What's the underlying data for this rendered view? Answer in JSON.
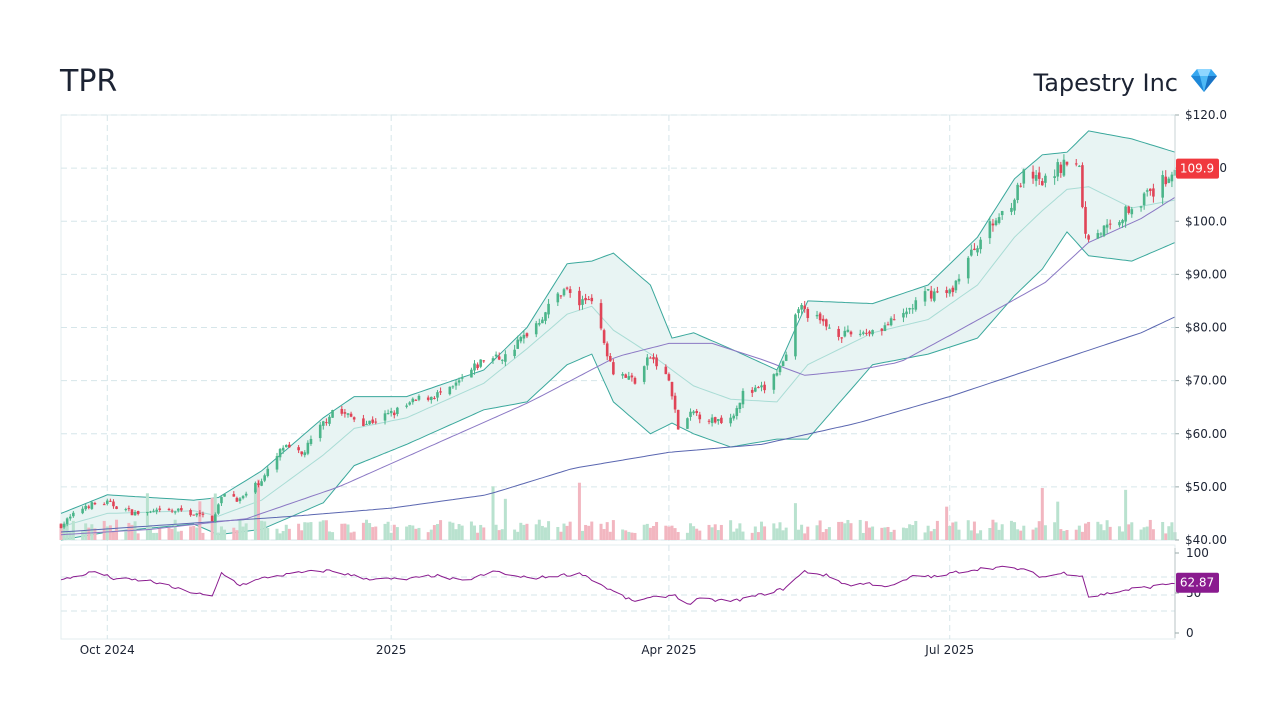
{
  "header": {
    "ticker": "TPR",
    "company": "Tapestry Inc",
    "icon": "diamond-icon"
  },
  "colors": {
    "up": "#4bb58a",
    "down": "#e04457",
    "band_fill": "#e8f4f3",
    "band_line": "#3aa89c",
    "ma_fast": "#8b78c4",
    "ma_slow": "#5a66b0",
    "rsi": "#8a1b8f",
    "price_badge": "#f0383e",
    "rsi_badge": "#8a1b8f",
    "grid": "#d6e6ea"
  },
  "chart_data": [
    {
      "type": "candlestick",
      "title": "",
      "ylim": [
        40,
        120
      ],
      "y_ticks": [
        "$120.0",
        "$110.0",
        "$100.0",
        "$90.00",
        "$80.00",
        "$70.00",
        "$60.00",
        "$50.00",
        "$40.00"
      ],
      "y_tick_values": [
        120,
        110,
        100,
        90,
        80,
        70,
        60,
        50,
        40
      ],
      "x_ticks": [
        "Oct 2024",
        "2025",
        "Apr 2025",
        "Jul 2025"
      ],
      "x_tick_dates": [
        "2024-10-01",
        "2025-01-01",
        "2025-04-01",
        "2025-07-01"
      ],
      "x_range": [
        "2024-09-16",
        "2025-09-12"
      ],
      "last_price": "109.9",
      "grid": true,
      "close_keypoints": [
        [
          "2024-09-16",
          42.8
        ],
        [
          "2024-09-24",
          46.5
        ],
        [
          "2024-10-01",
          47.0
        ],
        [
          "2024-10-10",
          45.0
        ],
        [
          "2024-10-25",
          45.5
        ],
        [
          "2024-11-04",
          44.0
        ],
        [
          "2024-11-08",
          49.0
        ],
        [
          "2024-11-13",
          47.5
        ],
        [
          "2024-11-21",
          52.0
        ],
        [
          "2024-11-27",
          57.5
        ],
        [
          "2024-12-03",
          56.0
        ],
        [
          "2024-12-10",
          62.0
        ],
        [
          "2024-12-13",
          64.5
        ],
        [
          "2024-12-24",
          62.0
        ],
        [
          "2025-01-02",
          64.0
        ],
        [
          "2025-01-10",
          66.5
        ],
        [
          "2025-01-20",
          68.0
        ],
        [
          "2025-01-31",
          74.0
        ],
        [
          "2025-02-07",
          74.5
        ],
        [
          "2025-02-14",
          79.0
        ],
        [
          "2025-02-18",
          81.5
        ],
        [
          "2025-02-26",
          87.5
        ],
        [
          "2025-03-03",
          84.5
        ],
        [
          "2025-03-07",
          86.0
        ],
        [
          "2025-03-10",
          79.0
        ],
        [
          "2025-03-14",
          72.0
        ],
        [
          "2025-03-21",
          70.0
        ],
        [
          "2025-03-26",
          74.5
        ],
        [
          "2025-04-01",
          70.0
        ],
        [
          "2025-04-04",
          61.0
        ],
        [
          "2025-04-09",
          64.0
        ],
        [
          "2025-04-15",
          62.5
        ],
        [
          "2025-04-21",
          63.0
        ],
        [
          "2025-04-25",
          67.5
        ],
        [
          "2025-05-02",
          68.5
        ],
        [
          "2025-05-09",
          74.0
        ],
        [
          "2025-05-13",
          84.0
        ],
        [
          "2025-05-20",
          81.0
        ],
        [
          "2025-05-28",
          78.5
        ],
        [
          "2025-06-06",
          79.5
        ],
        [
          "2025-06-13",
          81.0
        ],
        [
          "2025-06-24",
          86.5
        ],
        [
          "2025-07-01",
          86.5
        ],
        [
          "2025-07-10",
          96.0
        ],
        [
          "2025-07-17",
          101.0
        ],
        [
          "2025-07-22",
          104.5
        ],
        [
          "2025-07-25",
          108.5
        ],
        [
          "2025-07-31",
          107.0
        ],
        [
          "2025-08-07",
          111.0
        ],
        [
          "2025-08-12",
          110.0
        ],
        [
          "2025-08-14",
          97.0
        ],
        [
          "2025-08-22",
          99.0
        ],
        [
          "2025-08-29",
          103.0
        ],
        [
          "2025-09-05",
          105.5
        ],
        [
          "2025-09-12",
          110.0
        ]
      ],
      "bollinger_upper_keypoints": [
        [
          "2024-09-16",
          45.0
        ],
        [
          "2024-10-01",
          48.5
        ],
        [
          "2024-10-29",
          47.5
        ],
        [
          "2024-11-06",
          48.0
        ],
        [
          "2024-11-20",
          53.0
        ],
        [
          "2024-12-10",
          63.0
        ],
        [
          "2024-12-20",
          67.0
        ],
        [
          "2025-01-06",
          67.0
        ],
        [
          "2025-01-31",
          72.0
        ],
        [
          "2025-02-14",
          80.0
        ],
        [
          "2025-02-27",
          92.0
        ],
        [
          "2025-03-07",
          92.5
        ],
        [
          "2025-03-14",
          94.0
        ],
        [
          "2025-03-26",
          88.0
        ],
        [
          "2025-04-02",
          78.0
        ],
        [
          "2025-04-09",
          79.0
        ],
        [
          "2025-04-21",
          76.0
        ],
        [
          "2025-05-06",
          72.0
        ],
        [
          "2025-05-16",
          85.0
        ],
        [
          "2025-06-06",
          84.5
        ],
        [
          "2025-06-24",
          88.0
        ],
        [
          "2025-07-10",
          97.0
        ],
        [
          "2025-07-22",
          108.0
        ],
        [
          "2025-07-31",
          112.5
        ],
        [
          "2025-08-08",
          113.0
        ],
        [
          "2025-08-15",
          117.0
        ],
        [
          "2025-08-29",
          115.5
        ],
        [
          "2025-09-12",
          113.0
        ]
      ],
      "bollinger_middle_keypoints": [
        [
          "2024-09-16",
          42.5
        ],
        [
          "2024-10-01",
          45.0
        ],
        [
          "2024-10-29",
          45.5
        ],
        [
          "2024-11-06",
          44.5
        ],
        [
          "2024-11-20",
          47.5
        ],
        [
          "2024-12-10",
          56.0
        ],
        [
          "2024-12-20",
          61.0
        ],
        [
          "2025-01-06",
          63.0
        ],
        [
          "2025-01-31",
          69.5
        ],
        [
          "2025-02-14",
          76.0
        ],
        [
          "2025-02-27",
          82.5
        ],
        [
          "2025-03-07",
          84.0
        ],
        [
          "2025-03-14",
          79.5
        ],
        [
          "2025-03-26",
          75.0
        ],
        [
          "2025-04-02",
          72.0
        ],
        [
          "2025-04-09",
          69.0
        ],
        [
          "2025-04-21",
          66.5
        ],
        [
          "2025-05-06",
          66.0
        ],
        [
          "2025-05-16",
          73.0
        ],
        [
          "2025-06-06",
          79.0
        ],
        [
          "2025-06-24",
          81.5
        ],
        [
          "2025-07-10",
          88.0
        ],
        [
          "2025-07-22",
          97.0
        ],
        [
          "2025-07-31",
          102.0
        ],
        [
          "2025-08-08",
          106.0
        ],
        [
          "2025-08-15",
          106.5
        ],
        [
          "2025-08-29",
          102.5
        ],
        [
          "2025-09-12",
          104.0
        ]
      ],
      "bollinger_lower_keypoints": [
        [
          "2024-09-16",
          40.0
        ],
        [
          "2024-10-01",
          41.5
        ],
        [
          "2024-10-29",
          43.0
        ],
        [
          "2024-11-06",
          41.0
        ],
        [
          "2024-11-20",
          42.0
        ],
        [
          "2024-12-10",
          47.0
        ],
        [
          "2024-12-20",
          54.0
        ],
        [
          "2025-01-06",
          58.0
        ],
        [
          "2025-01-31",
          64.5
        ],
        [
          "2025-02-14",
          66.0
        ],
        [
          "2025-02-27",
          73.0
        ],
        [
          "2025-03-07",
          75.0
        ],
        [
          "2025-03-14",
          66.0
        ],
        [
          "2025-03-26",
          60.0
        ],
        [
          "2025-04-02",
          62.0
        ],
        [
          "2025-04-09",
          60.0
        ],
        [
          "2025-04-21",
          57.5
        ],
        [
          "2025-05-06",
          59.0
        ],
        [
          "2025-05-16",
          59.0
        ],
        [
          "2025-06-06",
          73.0
        ],
        [
          "2025-06-24",
          75.0
        ],
        [
          "2025-07-10",
          78.0
        ],
        [
          "2025-07-22",
          86.0
        ],
        [
          "2025-07-31",
          91.0
        ],
        [
          "2025-08-08",
          98.0
        ],
        [
          "2025-08-15",
          93.5
        ],
        [
          "2025-08-29",
          92.5
        ],
        [
          "2025-09-12",
          96.0
        ]
      ],
      "ma_fast_keypoints": [
        [
          "2024-09-16",
          41.0
        ],
        [
          "2024-10-15",
          42.0
        ],
        [
          "2024-11-15",
          44.0
        ],
        [
          "2024-12-15",
          50.0
        ],
        [
          "2025-01-15",
          58.0
        ],
        [
          "2025-02-15",
          66.0
        ],
        [
          "2025-03-15",
          74.5
        ],
        [
          "2025-04-01",
          77.0
        ],
        [
          "2025-04-15",
          77.0
        ],
        [
          "2025-05-01",
          74.0
        ],
        [
          "2025-05-15",
          71.0
        ],
        [
          "2025-06-01",
          72.0
        ],
        [
          "2025-06-15",
          73.5
        ],
        [
          "2025-07-01",
          78.5
        ],
        [
          "2025-07-15",
          83.0
        ],
        [
          "2025-08-01",
          88.5
        ],
        [
          "2025-08-15",
          96.0
        ],
        [
          "2025-09-01",
          100.5
        ],
        [
          "2025-09-12",
          104.5
        ]
      ],
      "ma_slow_keypoints": [
        [
          "2024-09-16",
          41.5
        ],
        [
          "2024-12-01",
          44.5
        ],
        [
          "2025-01-01",
          46.0
        ],
        [
          "2025-02-01",
          48.5
        ],
        [
          "2025-03-01",
          53.5
        ],
        [
          "2025-04-01",
          56.5
        ],
        [
          "2025-05-01",
          58.0
        ],
        [
          "2025-06-01",
          62.0
        ],
        [
          "2025-07-01",
          67.0
        ],
        [
          "2025-08-01",
          73.0
        ],
        [
          "2025-09-01",
          79.0
        ],
        [
          "2025-09-12",
          82.0
        ]
      ]
    },
    {
      "type": "bar",
      "series": "volume",
      "note_units": "relative",
      "values_source": "volume_pattern"
    },
    {
      "type": "line",
      "series": "rsi",
      "ylim": [
        0,
        100
      ],
      "y_ticks": [
        "100",
        "50",
        "0"
      ],
      "y_tick_values": [
        100,
        50,
        0
      ],
      "last_value": "62.87",
      "keypoints": [
        [
          "2024-09-16",
          66
        ],
        [
          "2024-09-24",
          74
        ],
        [
          "2024-09-27",
          77
        ],
        [
          "2024-10-03",
          68
        ],
        [
          "2024-10-15",
          65
        ],
        [
          "2024-10-24",
          55
        ],
        [
          "2024-11-04",
          45
        ],
        [
          "2024-11-07",
          75
        ],
        [
          "2024-11-13",
          60
        ],
        [
          "2024-11-22",
          70
        ],
        [
          "2024-12-04",
          76
        ],
        [
          "2024-12-12",
          78
        ],
        [
          "2024-12-24",
          68
        ],
        [
          "2025-01-06",
          67
        ],
        [
          "2025-01-15",
          72
        ],
        [
          "2025-01-24",
          65
        ],
        [
          "2025-02-04",
          77
        ],
        [
          "2025-02-11",
          70
        ],
        [
          "2025-02-18",
          69
        ],
        [
          "2025-02-24",
          72
        ],
        [
          "2025-03-04",
          74
        ],
        [
          "2025-03-11",
          58
        ],
        [
          "2025-03-17",
          46
        ],
        [
          "2025-03-20",
          40
        ],
        [
          "2025-03-27",
          44
        ],
        [
          "2025-04-03",
          48
        ],
        [
          "2025-04-07",
          35
        ],
        [
          "2025-04-10",
          42
        ],
        [
          "2025-04-22",
          40
        ],
        [
          "2025-05-01",
          48
        ],
        [
          "2025-05-08",
          55
        ],
        [
          "2025-05-15",
          77
        ],
        [
          "2025-05-22",
          72
        ],
        [
          "2025-05-29",
          60
        ],
        [
          "2025-06-05",
          62
        ],
        [
          "2025-06-12",
          58
        ],
        [
          "2025-06-20",
          72
        ],
        [
          "2025-06-27",
          70
        ],
        [
          "2025-07-03",
          76
        ],
        [
          "2025-07-10",
          80
        ],
        [
          "2025-07-17",
          82
        ],
        [
          "2025-07-24",
          80
        ],
        [
          "2025-07-31",
          70
        ],
        [
          "2025-08-07",
          75
        ],
        [
          "2025-08-13",
          72
        ],
        [
          "2025-08-15",
          45
        ],
        [
          "2025-08-22",
          50
        ],
        [
          "2025-08-29",
          55
        ],
        [
          "2025-09-05",
          58
        ],
        [
          "2025-09-12",
          63
        ]
      ]
    }
  ]
}
